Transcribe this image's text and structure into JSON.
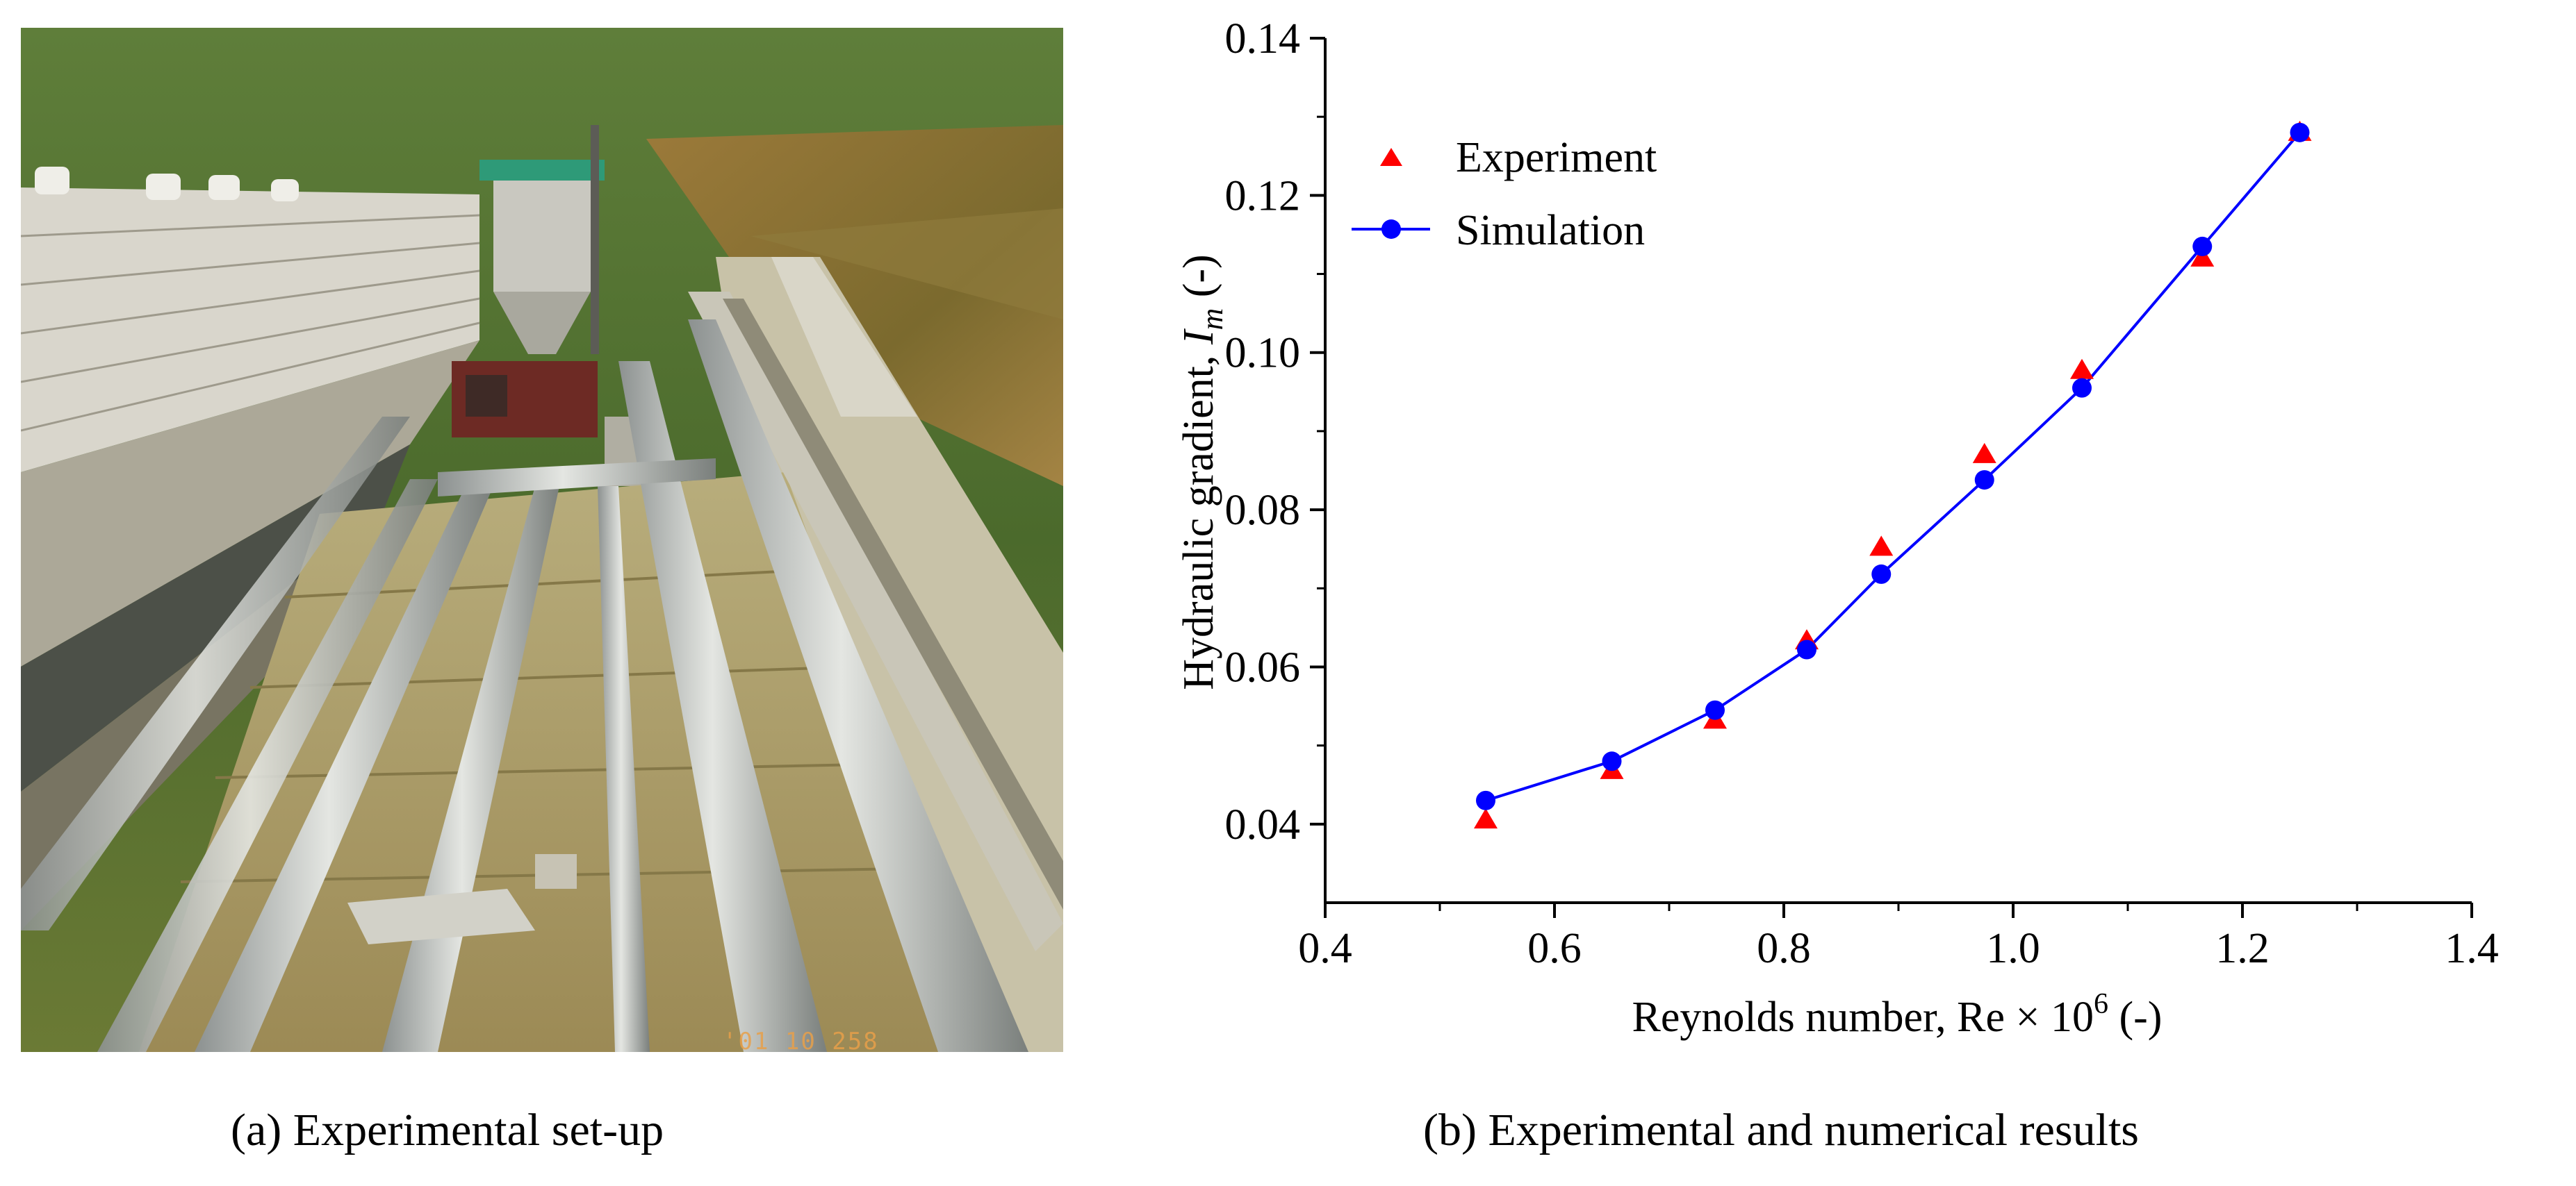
{
  "figure": {
    "caption_a": "(a) Experimental set-up",
    "caption_b": "(b) Experimental and numerical results",
    "photo_stamp": "'01 10 258"
  },
  "colors": {
    "experiment": "#ff0000",
    "simulation": "#0000ff",
    "axis": "#000000"
  },
  "chart_data": {
    "type": "line",
    "title": "",
    "xlabel": "Reynolds number, Re × 10",
    "xlabel_superscript": "6",
    "xlabel_suffix": " (-)",
    "ylabel": "Hydraulic gradient, ",
    "ylabel_symbol": "I",
    "ylabel_subscript": "m",
    "ylabel_suffix": " (-)",
    "xlim": [
      0.4,
      1.4
    ],
    "ylim": [
      0.03,
      0.14
    ],
    "xticks": [
      0.4,
      0.6,
      0.8,
      1.0,
      1.2,
      1.4
    ],
    "xtick_labels": [
      "0.4",
      "0.6",
      "0.8",
      "1.0",
      "1.2",
      "1.4"
    ],
    "yticks": [
      0.04,
      0.06,
      0.08,
      0.1,
      0.12,
      0.14
    ],
    "ytick_labels": [
      "0.04",
      "0.06",
      "0.08",
      "0.10",
      "0.12",
      "0.14"
    ],
    "legend_position": "top-left",
    "series": [
      {
        "name": "Experiment",
        "marker": "triangle",
        "line": false,
        "x": [
          0.54,
          0.65,
          0.74,
          0.82,
          0.885,
          0.975,
          1.06,
          1.165,
          1.25
        ],
        "y": [
          0.0405,
          0.0468,
          0.0532,
          0.0633,
          0.0752,
          0.087,
          0.0977,
          0.112,
          0.128
        ]
      },
      {
        "name": "Simulation",
        "marker": "circle",
        "line": true,
        "x": [
          0.54,
          0.65,
          0.74,
          0.82,
          0.885,
          0.975,
          1.06,
          1.165,
          1.25
        ],
        "y": [
          0.043,
          0.048,
          0.0545,
          0.0622,
          0.0718,
          0.0838,
          0.0955,
          0.1135,
          0.128
        ]
      }
    ]
  }
}
